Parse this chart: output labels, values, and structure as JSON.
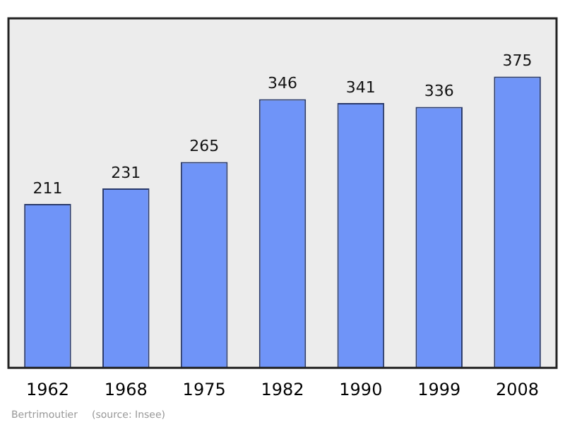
{
  "chart_data": {
    "type": "bar",
    "categories": [
      "1962",
      "1968",
      "1975",
      "1982",
      "1990",
      "1999",
      "2008"
    ],
    "values": [
      211,
      231,
      265,
      346,
      341,
      336,
      375
    ],
    "color": "#6f94f8",
    "data_labels": true,
    "grid": false,
    "legend": false,
    "annotations": [
      "Bertrimoutier",
      "(source: Insee)"
    ]
  }
}
